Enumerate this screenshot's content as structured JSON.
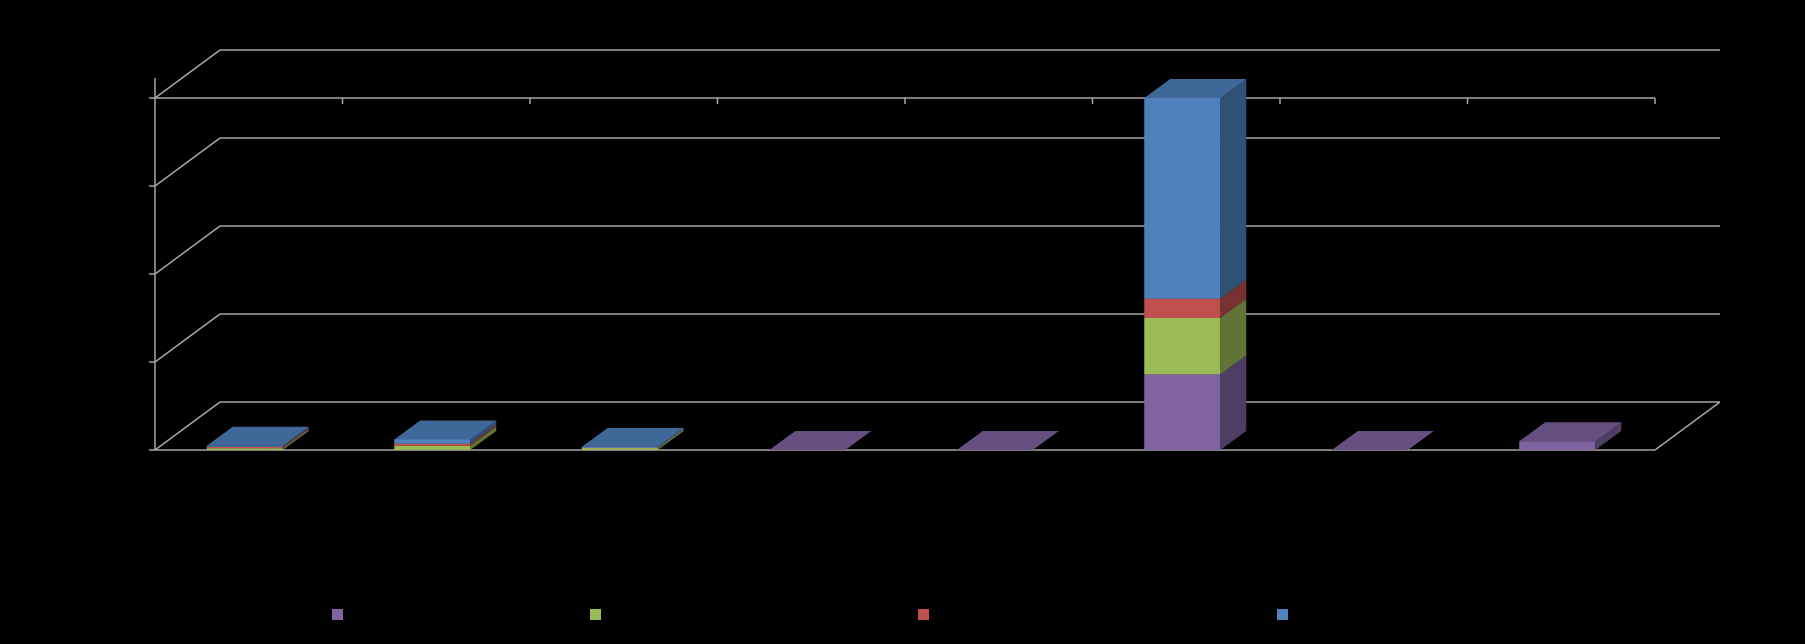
{
  "chart_data": {
    "type": "bar",
    "stacked": true,
    "three_d": true,
    "title": "",
    "xlabel": "",
    "ylabel": "",
    "categories": [
      "",
      "",
      "",
      "",
      "",
      "",
      "",
      ""
    ],
    "ylim": [
      0,
      100
    ],
    "grid": true,
    "legend_position": "bottom",
    "series": [
      {
        "color": "#8064a2",
        "values": [
          0,
          0,
          0,
          0,
          0,
          21.5,
          0,
          2.5
        ]
      },
      {
        "color": "#9bbb59",
        "values": [
          0.5,
          1.2,
          0.6,
          0,
          0,
          16,
          0,
          0
        ]
      },
      {
        "color": "#c0504d",
        "values": [
          0.4,
          0.6,
          0.2,
          0,
          0,
          5.5,
          0,
          0
        ]
      },
      {
        "color": "#4f81bd",
        "values": [
          0.3,
          1.2,
          0.1,
          0,
          0,
          57,
          0,
          0
        ]
      }
    ]
  }
}
